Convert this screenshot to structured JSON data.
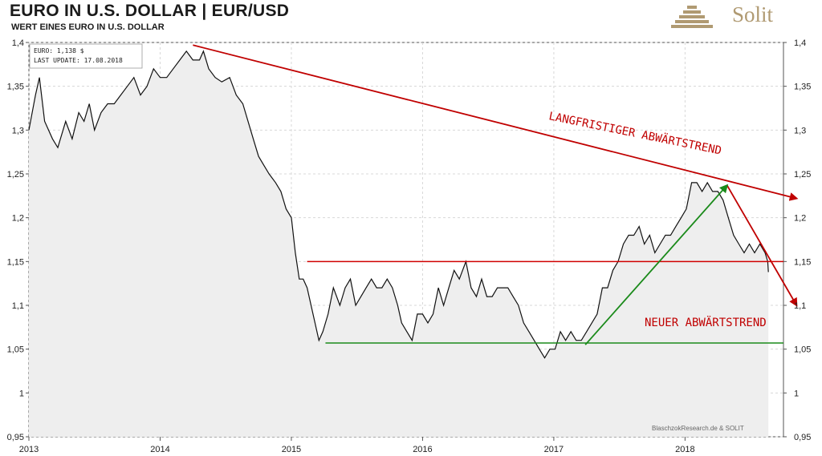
{
  "header": {
    "title": "EURO IN U.S. DOLLAR | EUR/USD",
    "subtitle": "WERT EINES EURO IN U.S. DOLLAR",
    "logo_text": "Solit",
    "logo_icon": "pyramid-icon",
    "brand_color": "#b09a72"
  },
  "chart_data": {
    "type": "line",
    "title": "EURO IN U.S. DOLLAR | EUR/USD",
    "subtitle": "WERT EINES EURO IN U.S. DOLLAR",
    "xlabel": "",
    "ylabel": "",
    "xlim": [
      2013.0,
      2018.75
    ],
    "ylim": [
      0.95,
      1.4
    ],
    "x_ticks": [
      "2013",
      "2014",
      "2015",
      "2016",
      "2017",
      "2018"
    ],
    "y_ticks": [
      "0,95",
      "1",
      "1,05",
      "1,1",
      "1,15",
      "1,2",
      "1,25",
      "1,3",
      "1,35",
      "1,4"
    ],
    "grid": true,
    "info_box": {
      "line1": "EURO: 1,138 $",
      "line2": "LAST UPDATE: 17.08.2018"
    },
    "credit": "BlaschzokResearch.de  & SOLIT",
    "series": [
      {
        "color": "#111111",
        "fill": "#eeeeee",
        "points": [
          [
            2013.0,
            1.3
          ],
          [
            2013.05,
            1.34
          ],
          [
            2013.08,
            1.36
          ],
          [
            2013.12,
            1.31
          ],
          [
            2013.18,
            1.29
          ],
          [
            2013.22,
            1.28
          ],
          [
            2013.28,
            1.31
          ],
          [
            2013.33,
            1.29
          ],
          [
            2013.38,
            1.32
          ],
          [
            2013.42,
            1.31
          ],
          [
            2013.46,
            1.33
          ],
          [
            2013.5,
            1.3
          ],
          [
            2013.55,
            1.32
          ],
          [
            2013.6,
            1.33
          ],
          [
            2013.65,
            1.33
          ],
          [
            2013.7,
            1.34
          ],
          [
            2013.75,
            1.35
          ],
          [
            2013.8,
            1.36
          ],
          [
            2013.85,
            1.34
          ],
          [
            2013.9,
            1.35
          ],
          [
            2013.95,
            1.37
          ],
          [
            2014.0,
            1.36
          ],
          [
            2014.05,
            1.36
          ],
          [
            2014.1,
            1.37
          ],
          [
            2014.15,
            1.38
          ],
          [
            2014.2,
            1.39
          ],
          [
            2014.25,
            1.38
          ],
          [
            2014.3,
            1.38
          ],
          [
            2014.33,
            1.39
          ],
          [
            2014.37,
            1.37
          ],
          [
            2014.42,
            1.36
          ],
          [
            2014.47,
            1.355
          ],
          [
            2014.53,
            1.36
          ],
          [
            2014.58,
            1.34
          ],
          [
            2014.63,
            1.33
          ],
          [
            2014.67,
            1.31
          ],
          [
            2014.71,
            1.29
          ],
          [
            2014.75,
            1.27
          ],
          [
            2014.79,
            1.26
          ],
          [
            2014.83,
            1.25
          ],
          [
            2014.88,
            1.24
          ],
          [
            2014.92,
            1.23
          ],
          [
            2014.96,
            1.21
          ],
          [
            2015.0,
            1.2
          ],
          [
            2015.03,
            1.16
          ],
          [
            2015.06,
            1.13
          ],
          [
            2015.09,
            1.13
          ],
          [
            2015.12,
            1.12
          ],
          [
            2015.15,
            1.1
          ],
          [
            2015.18,
            1.08
          ],
          [
            2015.21,
            1.06
          ],
          [
            2015.24,
            1.07
          ],
          [
            2015.28,
            1.09
          ],
          [
            2015.32,
            1.12
          ],
          [
            2015.37,
            1.1
          ],
          [
            2015.41,
            1.12
          ],
          [
            2015.45,
            1.13
          ],
          [
            2015.49,
            1.1
          ],
          [
            2015.53,
            1.11
          ],
          [
            2015.57,
            1.12
          ],
          [
            2015.61,
            1.13
          ],
          [
            2015.65,
            1.12
          ],
          [
            2015.69,
            1.12
          ],
          [
            2015.73,
            1.13
          ],
          [
            2015.77,
            1.12
          ],
          [
            2015.81,
            1.1
          ],
          [
            2015.84,
            1.08
          ],
          [
            2015.88,
            1.07
          ],
          [
            2015.92,
            1.06
          ],
          [
            2015.96,
            1.09
          ],
          [
            2016.0,
            1.09
          ],
          [
            2016.04,
            1.08
          ],
          [
            2016.08,
            1.09
          ],
          [
            2016.12,
            1.12
          ],
          [
            2016.16,
            1.1
          ],
          [
            2016.2,
            1.12
          ],
          [
            2016.24,
            1.14
          ],
          [
            2016.28,
            1.13
          ],
          [
            2016.33,
            1.15
          ],
          [
            2016.37,
            1.12
          ],
          [
            2016.41,
            1.11
          ],
          [
            2016.45,
            1.13
          ],
          [
            2016.49,
            1.11
          ],
          [
            2016.53,
            1.11
          ],
          [
            2016.57,
            1.12
          ],
          [
            2016.61,
            1.12
          ],
          [
            2016.65,
            1.12
          ],
          [
            2016.69,
            1.11
          ],
          [
            2016.73,
            1.1
          ],
          [
            2016.77,
            1.08
          ],
          [
            2016.81,
            1.07
          ],
          [
            2016.85,
            1.06
          ],
          [
            2016.89,
            1.05
          ],
          [
            2016.93,
            1.04
          ],
          [
            2016.97,
            1.05
          ],
          [
            2017.01,
            1.05
          ],
          [
            2017.05,
            1.07
          ],
          [
            2017.09,
            1.06
          ],
          [
            2017.13,
            1.07
          ],
          [
            2017.17,
            1.06
          ],
          [
            2017.21,
            1.06
          ],
          [
            2017.25,
            1.07
          ],
          [
            2017.29,
            1.08
          ],
          [
            2017.33,
            1.09
          ],
          [
            2017.37,
            1.12
          ],
          [
            2017.41,
            1.12
          ],
          [
            2017.45,
            1.14
          ],
          [
            2017.49,
            1.15
          ],
          [
            2017.53,
            1.17
          ],
          [
            2017.57,
            1.18
          ],
          [
            2017.61,
            1.18
          ],
          [
            2017.65,
            1.19
          ],
          [
            2017.69,
            1.17
          ],
          [
            2017.73,
            1.18
          ],
          [
            2017.77,
            1.16
          ],
          [
            2017.81,
            1.17
          ],
          [
            2017.85,
            1.18
          ],
          [
            2017.89,
            1.18
          ],
          [
            2017.93,
            1.19
          ],
          [
            2017.97,
            1.2
          ],
          [
            2018.01,
            1.21
          ],
          [
            2018.05,
            1.24
          ],
          [
            2018.09,
            1.24
          ],
          [
            2018.13,
            1.23
          ],
          [
            2018.17,
            1.24
          ],
          [
            2018.21,
            1.23
          ],
          [
            2018.25,
            1.23
          ],
          [
            2018.29,
            1.22
          ],
          [
            2018.33,
            1.2
          ],
          [
            2018.37,
            1.18
          ],
          [
            2018.41,
            1.17
          ],
          [
            2018.45,
            1.16
          ],
          [
            2018.49,
            1.17
          ],
          [
            2018.53,
            1.16
          ],
          [
            2018.57,
            1.17
          ],
          [
            2018.61,
            1.16
          ],
          [
            2018.63,
            1.15
          ],
          [
            2018.635,
            1.138
          ]
        ]
      }
    ],
    "annotations": [
      {
        "text": "LANGFRISTIGER ABWÄRTSTREND",
        "color": "#c00000"
      },
      {
        "text": "NEUER ABWÄRTSTREND",
        "color": "#c00000"
      }
    ],
    "trend_lines": [
      {
        "name": "long-term-downtrend",
        "color": "#c00000",
        "from": [
          2014.25,
          1.397
        ],
        "to": [
          2018.85,
          1.222
        ],
        "arrow": true
      },
      {
        "name": "new-downtrend",
        "color": "#c00000",
        "from": [
          2018.32,
          1.237
        ],
        "to": [
          2018.85,
          1.1
        ],
        "arrow": true
      },
      {
        "name": "resistance-line",
        "color": "#d00000",
        "from": [
          2015.12,
          1.15
        ],
        "to": [
          2018.75,
          1.15
        ],
        "arrow": false
      },
      {
        "name": "support-line",
        "color": "#1a8a1a",
        "from": [
          2015.26,
          1.057
        ],
        "to": [
          2018.75,
          1.057
        ],
        "arrow": false
      },
      {
        "name": "uptrend",
        "color": "#1a8a1a",
        "from": [
          2017.24,
          1.055
        ],
        "to": [
          2018.32,
          1.237
        ],
        "arrow": true
      }
    ]
  }
}
